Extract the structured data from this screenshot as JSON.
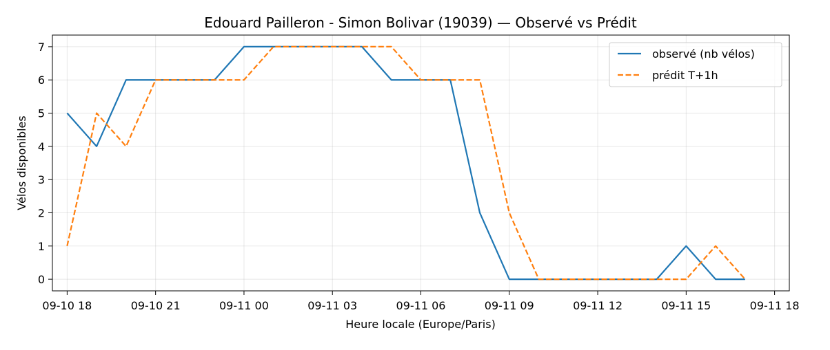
{
  "chart_data": {
    "type": "line",
    "title": "Edouard Pailleron - Simon Bolivar (19039) — Observé vs Prédit",
    "xlabel": "Heure locale (Europe/Paris)",
    "ylabel": "Vélos disponibles",
    "x_ticks": [
      "09-10 18",
      "09-10 21",
      "09-11 00",
      "09-11 03",
      "09-11 06",
      "09-11 09",
      "09-11 12",
      "09-11 15",
      "09-11 18"
    ],
    "y_ticks": [
      0,
      1,
      2,
      3,
      4,
      5,
      6,
      7
    ],
    "xlim": [
      "2025-09-10 17:30",
      "2025-09-11 18:30"
    ],
    "ylim": [
      -0.35,
      7.35
    ],
    "grid": true,
    "legend_position": "top-right",
    "series": [
      {
        "name": "observé (nb vélos)",
        "color": "#1f77b4",
        "style": "solid",
        "points": [
          [
            "2025-09-10 18:00",
            5
          ],
          [
            "2025-09-10 19:00",
            4
          ],
          [
            "2025-09-10 20:00",
            6
          ],
          [
            "2025-09-10 21:00",
            6
          ],
          [
            "2025-09-10 22:00",
            6
          ],
          [
            "2025-09-10 23:00",
            6
          ],
          [
            "2025-09-11 00:00",
            7
          ],
          [
            "2025-09-11 01:00",
            7
          ],
          [
            "2025-09-11 02:00",
            7
          ],
          [
            "2025-09-11 03:00",
            7
          ],
          [
            "2025-09-11 04:00",
            7
          ],
          [
            "2025-09-11 05:00",
            6
          ],
          [
            "2025-09-11 06:00",
            6
          ],
          [
            "2025-09-11 07:00",
            6
          ],
          [
            "2025-09-11 08:00",
            2
          ],
          [
            "2025-09-11 09:00",
            0
          ],
          [
            "2025-09-11 10:00",
            0
          ],
          [
            "2025-09-11 11:00",
            0
          ],
          [
            "2025-09-11 12:00",
            0
          ],
          [
            "2025-09-11 13:00",
            0
          ],
          [
            "2025-09-11 14:00",
            0
          ],
          [
            "2025-09-11 15:00",
            1
          ],
          [
            "2025-09-11 16:00",
            0
          ],
          [
            "2025-09-11 17:00",
            0
          ]
        ]
      },
      {
        "name": "prédit T+1h",
        "color": "#ff7f0e",
        "style": "dashed",
        "points": [
          [
            "2025-09-10 18:00",
            1
          ],
          [
            "2025-09-10 19:00",
            5
          ],
          [
            "2025-09-10 20:00",
            4
          ],
          [
            "2025-09-10 21:00",
            6
          ],
          [
            "2025-09-10 22:00",
            6
          ],
          [
            "2025-09-10 23:00",
            6
          ],
          [
            "2025-09-11 00:00",
            6
          ],
          [
            "2025-09-11 01:00",
            7
          ],
          [
            "2025-09-11 02:00",
            7
          ],
          [
            "2025-09-11 03:00",
            7
          ],
          [
            "2025-09-11 04:00",
            7
          ],
          [
            "2025-09-11 05:00",
            7
          ],
          [
            "2025-09-11 06:00",
            6
          ],
          [
            "2025-09-11 07:00",
            6
          ],
          [
            "2025-09-11 08:00",
            6
          ],
          [
            "2025-09-11 09:00",
            2
          ],
          [
            "2025-09-11 10:00",
            0
          ],
          [
            "2025-09-11 11:00",
            0
          ],
          [
            "2025-09-11 12:00",
            0
          ],
          [
            "2025-09-11 13:00",
            0
          ],
          [
            "2025-09-11 14:00",
            0
          ],
          [
            "2025-09-11 15:00",
            0
          ],
          [
            "2025-09-11 16:00",
            1
          ],
          [
            "2025-09-11 17:00",
            0
          ]
        ]
      }
    ]
  }
}
